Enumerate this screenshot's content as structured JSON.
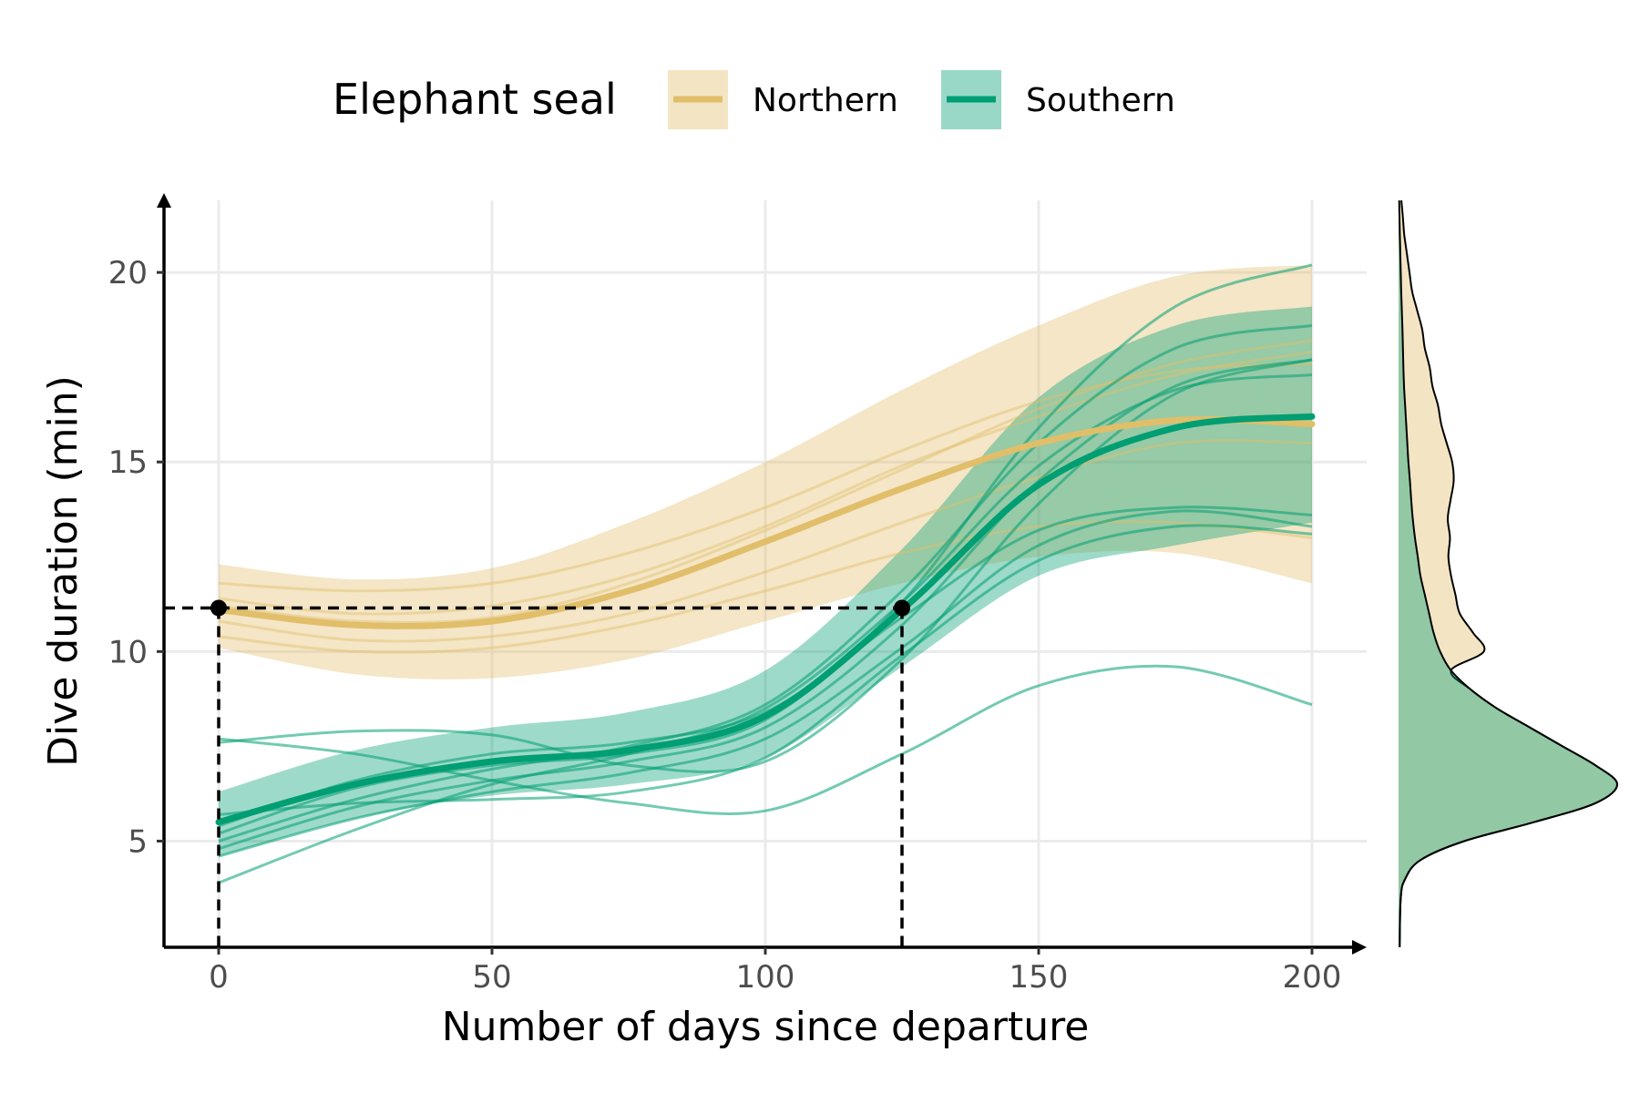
{
  "chart_data": {
    "type": "line",
    "xlabel": "Number of days since departure",
    "ylabel": "Dive duration (min)",
    "xlim": [
      -10,
      210
    ],
    "ylim": [
      2.2,
      21.9
    ],
    "x_ticks": [
      0,
      50,
      100,
      150,
      200
    ],
    "y_ticks": [
      5,
      10,
      15,
      20
    ],
    "grid": true,
    "legend": {
      "title": "Elephant seal",
      "position": "top"
    },
    "colors": {
      "Northern": "#E1BE6A",
      "Southern": "#009E73"
    },
    "x": [
      0,
      25,
      50,
      75,
      100,
      125,
      150,
      175,
      200
    ],
    "series": [
      {
        "name": "Northern",
        "color": "#E1BE6A",
        "mean": [
          11.1,
          10.7,
          10.8,
          11.6,
          12.9,
          14.3,
          15.5,
          16.1,
          16.0
        ],
        "lower": [
          10.1,
          9.4,
          9.3,
          9.8,
          10.8,
          11.8,
          12.5,
          12.6,
          11.8
        ],
        "upper": [
          12.3,
          11.9,
          12.2,
          13.4,
          15.0,
          16.9,
          18.6,
          19.9,
          20.2
        ],
        "individuals": [
          [
            11.8,
            11.6,
            11.8,
            12.6,
            13.8,
            15.3,
            16.6,
            17.4,
            17.6
          ],
          [
            10.4,
            10.0,
            10.1,
            10.7,
            11.6,
            12.6,
            13.3,
            13.4,
            13.0
          ],
          [
            11.4,
            11.0,
            11.2,
            12.0,
            13.3,
            14.9,
            16.2,
            17.3,
            17.9
          ],
          [
            10.8,
            10.3,
            10.4,
            11.0,
            12.1,
            13.4,
            14.6,
            15.5,
            15.5
          ],
          [
            11.2,
            10.8,
            10.9,
            11.8,
            13.2,
            14.8,
            16.4,
            17.6,
            18.2
          ]
        ]
      },
      {
        "name": "Southern",
        "color": "#009E73",
        "mean": [
          5.5,
          6.5,
          7.1,
          7.4,
          8.3,
          11.1,
          14.4,
          15.9,
          16.2
        ],
        "lower": [
          4.6,
          5.6,
          6.2,
          6.5,
          7.2,
          9.6,
          12.0,
          12.8,
          13.4
        ],
        "upper": [
          6.3,
          7.4,
          8.0,
          8.4,
          9.5,
          12.7,
          16.7,
          18.6,
          19.1
        ],
        "individuals": [
          [
            5.0,
            6.1,
            6.9,
            7.5,
            8.6,
            11.6,
            15.5,
            18.0,
            18.6
          ],
          [
            4.8,
            5.9,
            6.6,
            7.1,
            8.0,
            10.7,
            14.5,
            17.0,
            17.7
          ],
          [
            5.2,
            6.4,
            7.0,
            7.3,
            8.2,
            11.3,
            15.9,
            19.1,
            20.2
          ],
          [
            4.6,
            5.6,
            6.3,
            6.8,
            7.7,
            10.1,
            12.8,
            13.7,
            13.3
          ],
          [
            5.4,
            6.6,
            7.3,
            7.6,
            8.4,
            10.9,
            13.2,
            13.8,
            13.6
          ],
          [
            3.9,
            5.3,
            6.5,
            7.3,
            8.5,
            11.3,
            14.9,
            16.9,
            17.3
          ],
          [
            7.6,
            7.9,
            7.8,
            7.0,
            7.1,
            9.8,
            13.9,
            16.8,
            17.7
          ],
          [
            7.7,
            7.3,
            6.6,
            6.0,
            5.8,
            7.3,
            9.1,
            9.6,
            8.6
          ],
          [
            5.7,
            6.0,
            6.1,
            6.3,
            7.2,
            9.9,
            12.4,
            13.3,
            13.1
          ]
        ]
      }
    ],
    "reference_points": [
      {
        "x": 0,
        "y": 11.15
      },
      {
        "x": 125,
        "y": 11.15
      }
    ],
    "density": {
      "y": [
        2.2,
        3.5,
        4.0,
        4.5,
        5.0,
        5.5,
        6.0,
        6.5,
        7.0,
        7.5,
        8.0,
        8.5,
        9.0,
        9.5,
        10.0,
        10.5,
        11.0,
        11.5,
        12.0,
        12.5,
        13.0,
        13.5,
        14.0,
        14.5,
        15.0,
        15.5,
        16.0,
        16.5,
        17.0,
        17.5,
        18.0,
        18.5,
        19.0,
        19.5,
        20.0,
        20.5,
        21.0,
        21.5,
        21.9
      ],
      "Southern": [
        0.005,
        0.01,
        0.03,
        0.1,
        0.3,
        0.62,
        0.9,
        1.0,
        0.9,
        0.75,
        0.6,
        0.45,
        0.33,
        0.24,
        0.19,
        0.16,
        0.14,
        0.12,
        0.1,
        0.088,
        0.075,
        0.065,
        0.058,
        0.052,
        0.045,
        0.04,
        0.035,
        0.03,
        0.025,
        0.022,
        0.02,
        0.018,
        0.015,
        0.012,
        0.01,
        0.008,
        0.006,
        0.004,
        0.003
      ],
      "Northern": [
        0.0,
        0.0,
        0.0,
        0.0,
        0.0,
        0.0,
        0.0,
        0.0,
        0.0,
        0.0,
        0.0,
        0.0,
        0.0,
        0.0,
        0.2,
        0.18,
        0.14,
        0.14,
        0.14,
        0.14,
        0.16,
        0.16,
        0.18,
        0.2,
        0.2,
        0.18,
        0.16,
        0.15,
        0.13,
        0.12,
        0.1,
        0.09,
        0.07,
        0.05,
        0.04,
        0.03,
        0.02,
        0.015,
        0.01
      ]
    }
  }
}
